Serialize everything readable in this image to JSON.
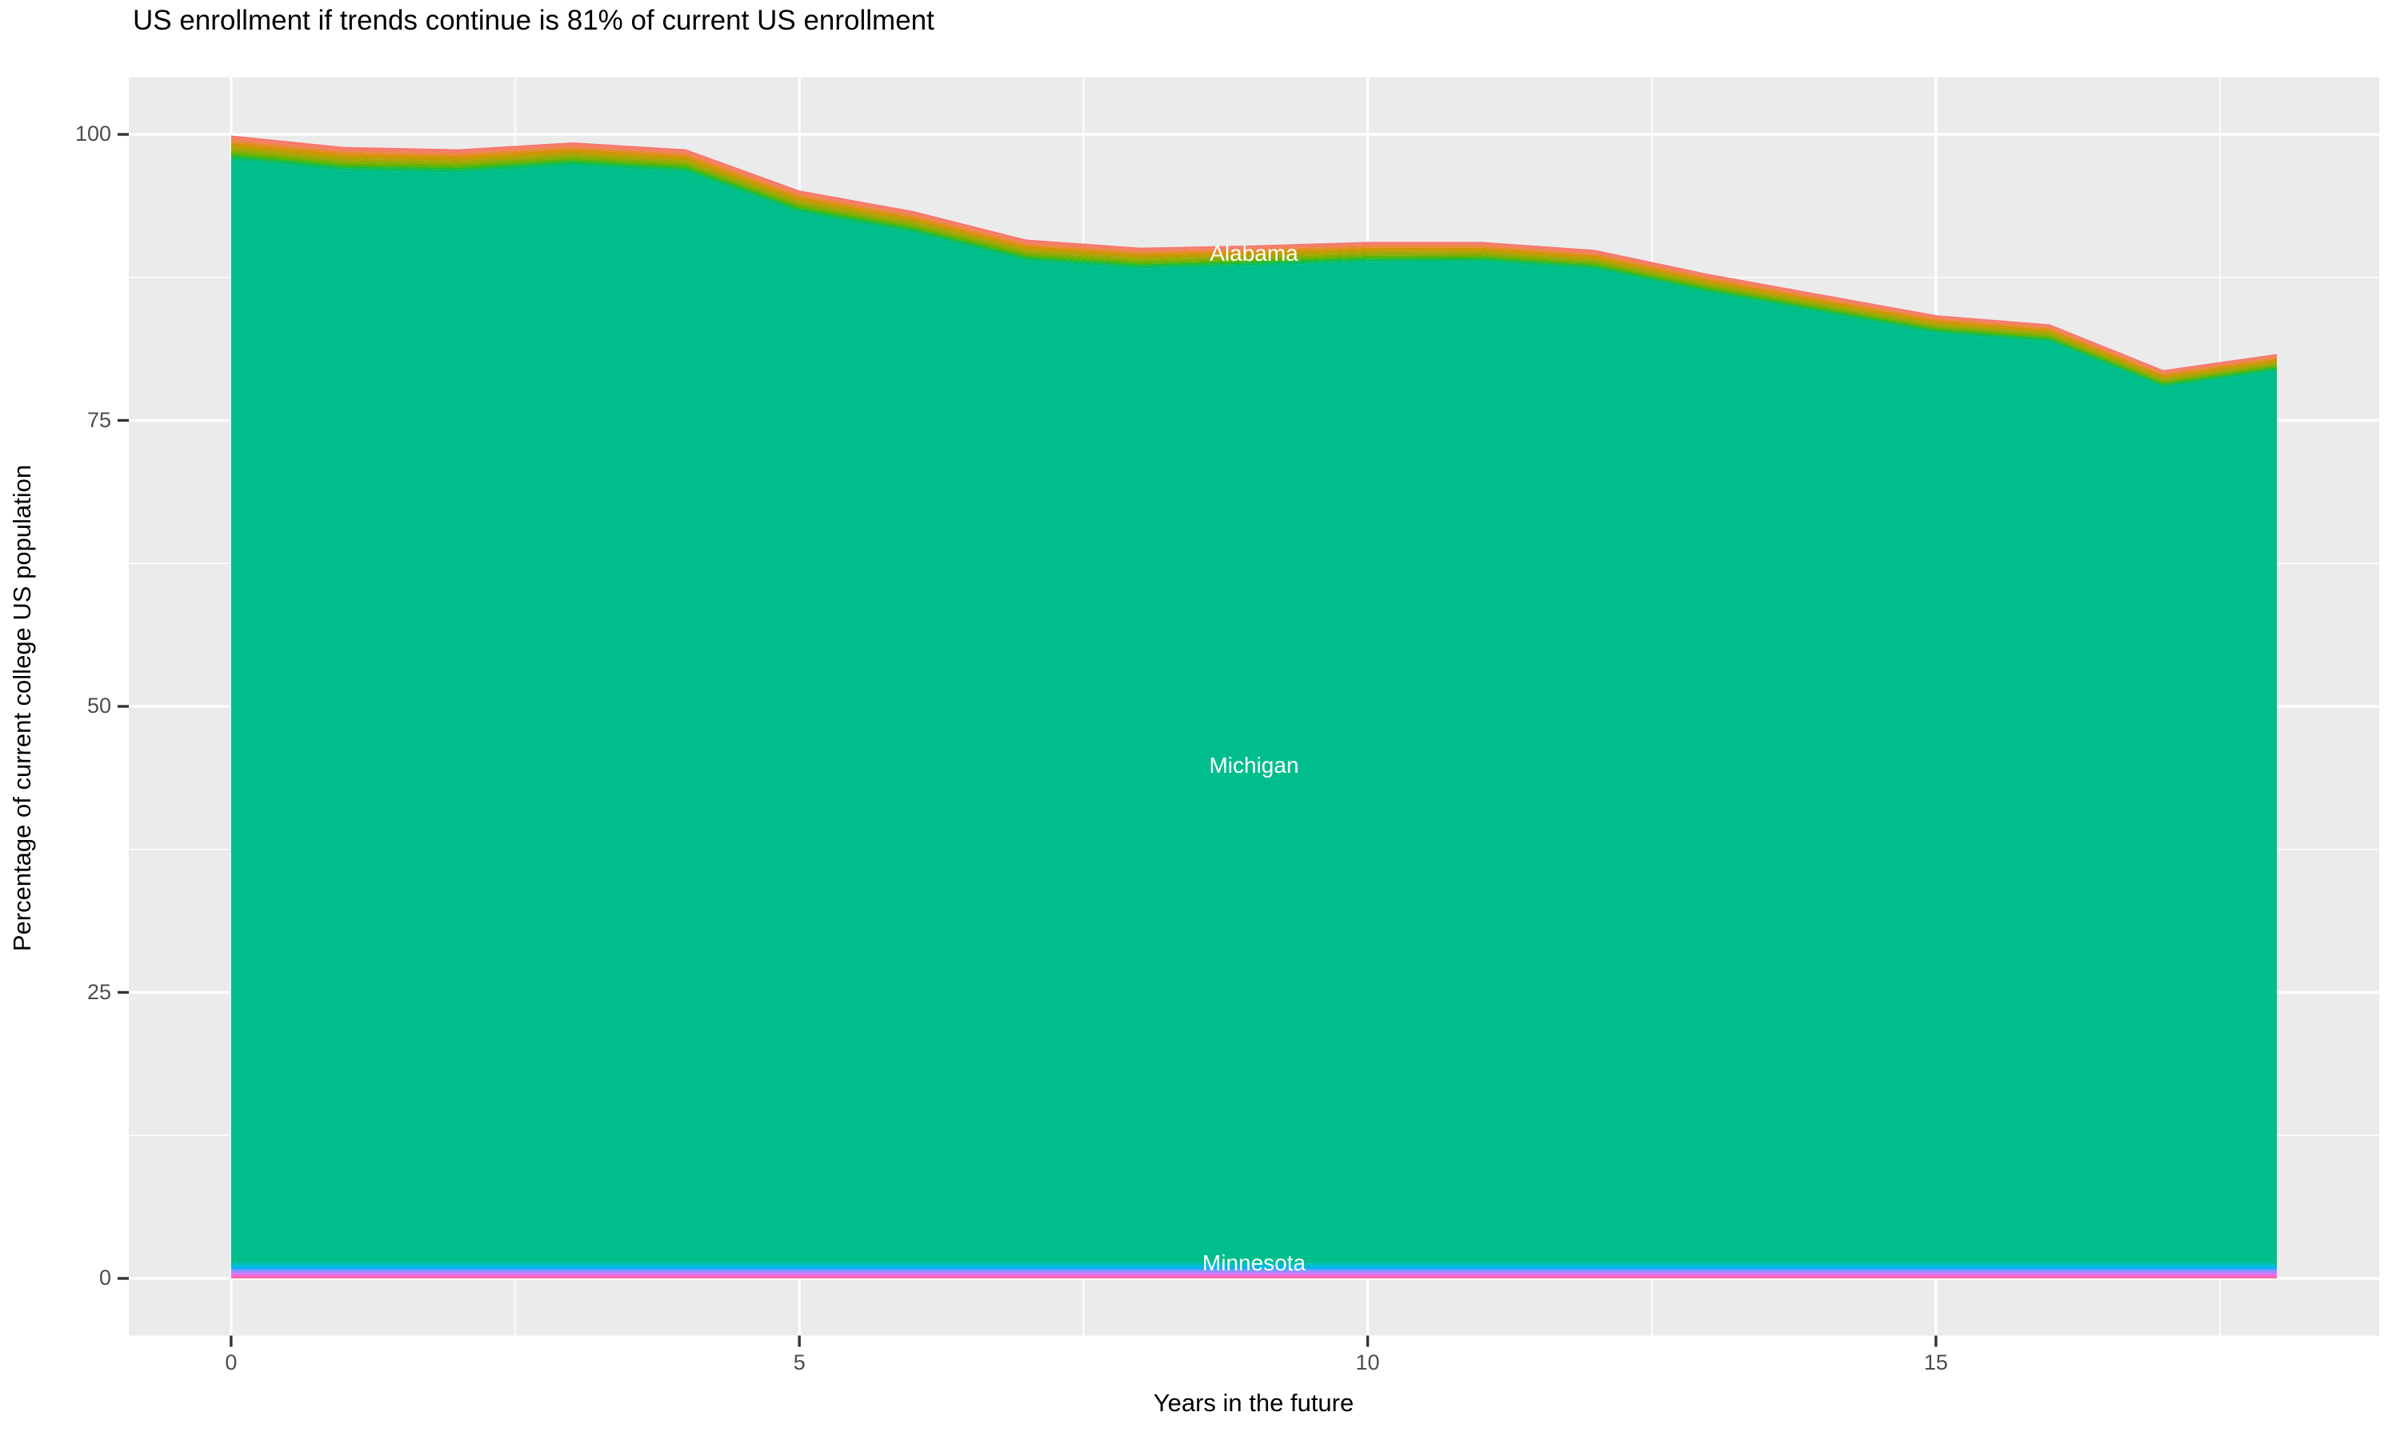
{
  "title": "US enrollment if trends continue is 81% of current US enrollment",
  "chart_data": {
    "type": "area",
    "stacked": true,
    "title": "US enrollment if trends continue is 81% of current US enrollment",
    "xlabel": "Years in the future",
    "ylabel": "Percentage of current college US population",
    "x": [
      0,
      1,
      2,
      3,
      4,
      5,
      6,
      7,
      8,
      9,
      10,
      11,
      12,
      13,
      14,
      15,
      16,
      17,
      18
    ],
    "total_top_pct": [
      99.9,
      98.9,
      98.7,
      99.3,
      98.7,
      95.1,
      93.3,
      90.8,
      90.1,
      90.3,
      90.6,
      90.6,
      89.9,
      87.8,
      86.0,
      84.2,
      83.4,
      79.4,
      80.8
    ],
    "final_pct_of_current": 81,
    "xlim": [
      -0.9,
      18.9
    ],
    "ylim": [
      -5,
      105
    ],
    "x_ticks": [
      0,
      5,
      10,
      15
    ],
    "x_minor_gridlines": [
      2.5,
      7.5,
      12.5,
      17.5
    ],
    "y_ticks": [
      100,
      75,
      50,
      25,
      0
    ],
    "y_minor_gridlines": [
      12.5,
      37.5,
      62.5,
      87.5
    ],
    "grid": "on",
    "legend": "none",
    "panel_bg": "#EBEBEB",
    "gridline_color": "#FFFFFF",
    "tick_mark_color": "#333333",
    "tick_label_color": "#4d4d4d",
    "layers": {
      "top_band": {
        "description": "thin stack of many state areas above Michigan (Alabama through Massachusetts), rainbow red-to-green stripes",
        "labeled_state": "Alabama",
        "thickness_pct_start": 2.1,
        "thickness_pct_end": 1.45,
        "stripe_colors_top_to_bottom": [
          "#F8766D",
          "#F3805B",
          "#E88A32",
          "#D59100",
          "#BC9B00",
          "#A3A500",
          "#84AC00",
          "#5BB300",
          "#21BA32",
          "#00BD68"
        ]
      },
      "michigan": {
        "name": "Michigan",
        "color": "#00BE8C",
        "description": "dominant teal area occupying nearly the whole stack"
      },
      "bottom_band": {
        "description": "thin stack of state areas below Michigan (Minnesota through Wyoming), cyan-blue-purple-pink stripes",
        "labeled_state": "Minnesota",
        "thickness_pct": 1.4,
        "stripe_colors_top_to_bottom": [
          "#00C0AC",
          "#00C1C3",
          "#00BBDC",
          "#00AFF5",
          "#619CFF",
          "#8F93FF",
          "#BC81FF",
          "#E272F4",
          "#FB62D0",
          "#FF689C"
        ]
      }
    },
    "labels": [
      {
        "text": "Alabama",
        "x": 9,
        "y": 89.6
      },
      {
        "text": "Michigan",
        "x": 9,
        "y": 44.8
      },
      {
        "text": "Minnesota",
        "x": 9,
        "y": 1.33
      }
    ]
  }
}
